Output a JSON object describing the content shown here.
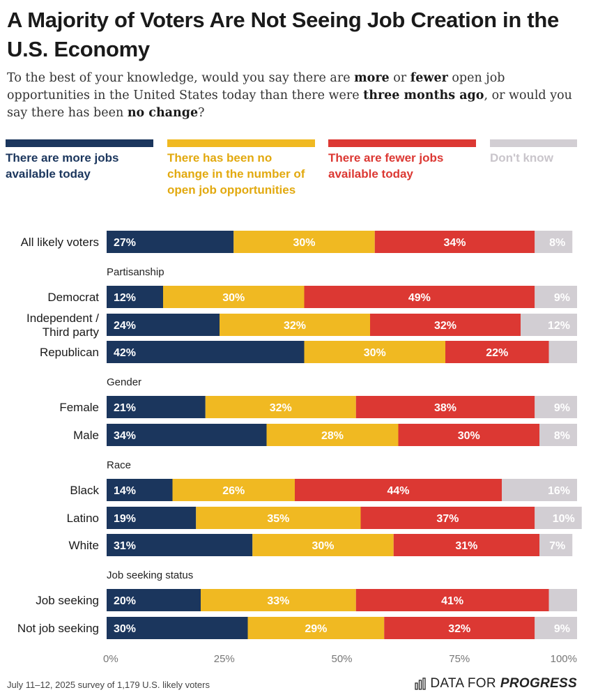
{
  "header": {
    "title": "A Majority of Voters Are Not Seeing Job Creation in the U.S. Economy",
    "subtitle_parts": [
      {
        "text": "To the best of your knowledge, would you say there are ",
        "bold": false
      },
      {
        "text": "more",
        "bold": true
      },
      {
        "text": " or ",
        "bold": false
      },
      {
        "text": "fewer",
        "bold": true
      },
      {
        "text": " open job opportunities in the United States today than there were ",
        "bold": false
      },
      {
        "text": "three months ago",
        "bold": true
      },
      {
        "text": ", or would you say there has been ",
        "bold": false
      },
      {
        "text": "no change",
        "bold": true
      },
      {
        "text": "?",
        "bold": false
      }
    ]
  },
  "legend": [
    {
      "label": "There are more jobs available today",
      "color": "#1b365d"
    },
    {
      "label": "There has been no change in the number of open job opportunities",
      "color": "#f0b922"
    },
    {
      "label": "There are fewer jobs available today",
      "color": "#dc3833"
    },
    {
      "label": "Don't know",
      "color": "#d2ced3"
    }
  ],
  "chart_data": {
    "type": "bar",
    "orientation": "horizontal",
    "stacked": true,
    "xlim": [
      0,
      100
    ],
    "x_ticks": [
      "0%",
      "25%",
      "50%",
      "75%",
      "100%"
    ],
    "series_names": [
      "There are more jobs available today",
      "There has been no change in the number of open job opportunities",
      "There are fewer jobs available today",
      "Don't know"
    ],
    "colors": [
      "#1b365d",
      "#f0b922",
      "#dc3833",
      "#d2ced3"
    ],
    "groups": [
      {
        "header": "",
        "rows": [
          {
            "label": "All likely voters",
            "values": [
              27,
              30,
              34,
              8
            ],
            "labels": [
              "27%",
              "30%",
              "34%",
              "8%"
            ]
          }
        ]
      },
      {
        "header": "Partisanship",
        "rows": [
          {
            "label": "Democrat",
            "values": [
              12,
              30,
              49,
              9
            ],
            "labels": [
              "12%",
              "30%",
              "49%",
              "9%"
            ]
          },
          {
            "label": "Independent / Third party",
            "values": [
              24,
              32,
              32,
              12
            ],
            "labels": [
              "24%",
              "32%",
              "32%",
              "12%"
            ]
          },
          {
            "label": "Republican",
            "values": [
              42,
              30,
              22,
              6
            ],
            "labels": [
              "42%",
              "30%",
              "22%",
              ""
            ]
          }
        ]
      },
      {
        "header": "Gender",
        "rows": [
          {
            "label": "Female",
            "values": [
              21,
              32,
              38,
              9
            ],
            "labels": [
              "21%",
              "32%",
              "38%",
              "9%"
            ]
          },
          {
            "label": "Male",
            "values": [
              34,
              28,
              30,
              8
            ],
            "labels": [
              "34%",
              "28%",
              "30%",
              "8%"
            ]
          }
        ]
      },
      {
        "header": "Race",
        "rows": [
          {
            "label": "Black",
            "values": [
              14,
              26,
              44,
              16
            ],
            "labels": [
              "14%",
              "26%",
              "44%",
              "16%"
            ]
          },
          {
            "label": "Latino",
            "values": [
              19,
              35,
              37,
              10
            ],
            "labels": [
              "19%",
              "35%",
              "37%",
              "10%"
            ]
          },
          {
            "label": "White",
            "values": [
              31,
              30,
              31,
              7
            ],
            "labels": [
              "31%",
              "30%",
              "31%",
              "7%"
            ]
          }
        ]
      },
      {
        "header": "Job seeking status",
        "rows": [
          {
            "label": "Job seeking",
            "values": [
              20,
              33,
              41,
              6
            ],
            "labels": [
              "20%",
              "33%",
              "41%",
              ""
            ]
          },
          {
            "label": "Not job seeking",
            "values": [
              30,
              29,
              32,
              9
            ],
            "labels": [
              "30%",
              "29%",
              "32%",
              "9%"
            ]
          }
        ]
      }
    ]
  },
  "footer": {
    "note": "July 11–12, 2025 survey of 1,179 U.S. likely voters",
    "brand_regular": "DATA FOR ",
    "brand_bold": "PROGRESS"
  }
}
